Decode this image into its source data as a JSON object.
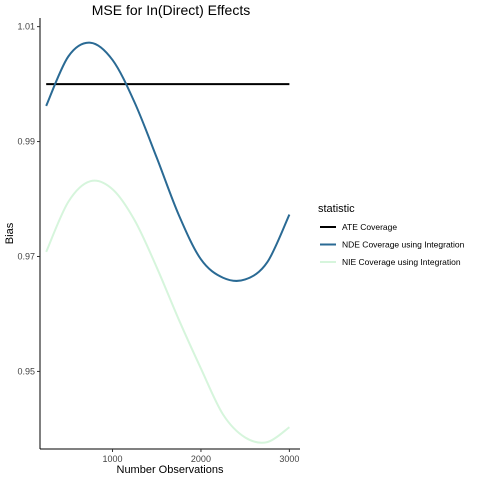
{
  "chart_data": {
    "type": "line",
    "title": "MSE for In(Direct) Effects",
    "xlabel": "Number Observations",
    "ylabel": "Bias",
    "xlim": [
      180,
      3120
    ],
    "ylim": [
      0.9365,
      1.0115
    ],
    "x_ticks": [
      1000,
      2000,
      3000
    ],
    "x_tick_labels": [
      "1000",
      "2000",
      "3000"
    ],
    "y_ticks": [
      0.95,
      0.97,
      0.99,
      1.01
    ],
    "y_tick_labels": [
      "0.95",
      "0.97",
      "0.99",
      "1.01"
    ],
    "grid": false,
    "legend": {
      "title": "statistic",
      "position": "right"
    },
    "series": [
      {
        "name": "ATE Coverage",
        "color": "#000000",
        "x": [
          250,
          500,
          750,
          1000,
          1250,
          1500,
          1750,
          2000,
          2250,
          2500,
          2750,
          3000
        ],
        "y": [
          1.0,
          1.0,
          1.0,
          1.0,
          1.0,
          1.0,
          1.0,
          1.0,
          1.0,
          1.0,
          1.0,
          1.0
        ]
      },
      {
        "name": "NDE Coverage using Integration",
        "color": "#2a6a94",
        "x": [
          250,
          500,
          750,
          1000,
          1250,
          1500,
          1750,
          2000,
          2250,
          2500,
          2750,
          3000
        ],
        "y": [
          0.9962,
          1.0048,
          1.0072,
          1.0042,
          0.9968,
          0.9872,
          0.9772,
          0.9695,
          0.9663,
          0.966,
          0.969,
          0.9773
        ]
      },
      {
        "name": "NIE Coverage using Integration",
        "color": "#d6f5dc",
        "x": [
          250,
          500,
          750,
          1000,
          1250,
          1500,
          1750,
          2000,
          2250,
          2500,
          2750,
          3000
        ],
        "y": [
          0.9708,
          0.9795,
          0.9831,
          0.9817,
          0.9763,
          0.9681,
          0.959,
          0.9505,
          0.9425,
          0.9385,
          0.9377,
          0.9403
        ]
      }
    ]
  }
}
